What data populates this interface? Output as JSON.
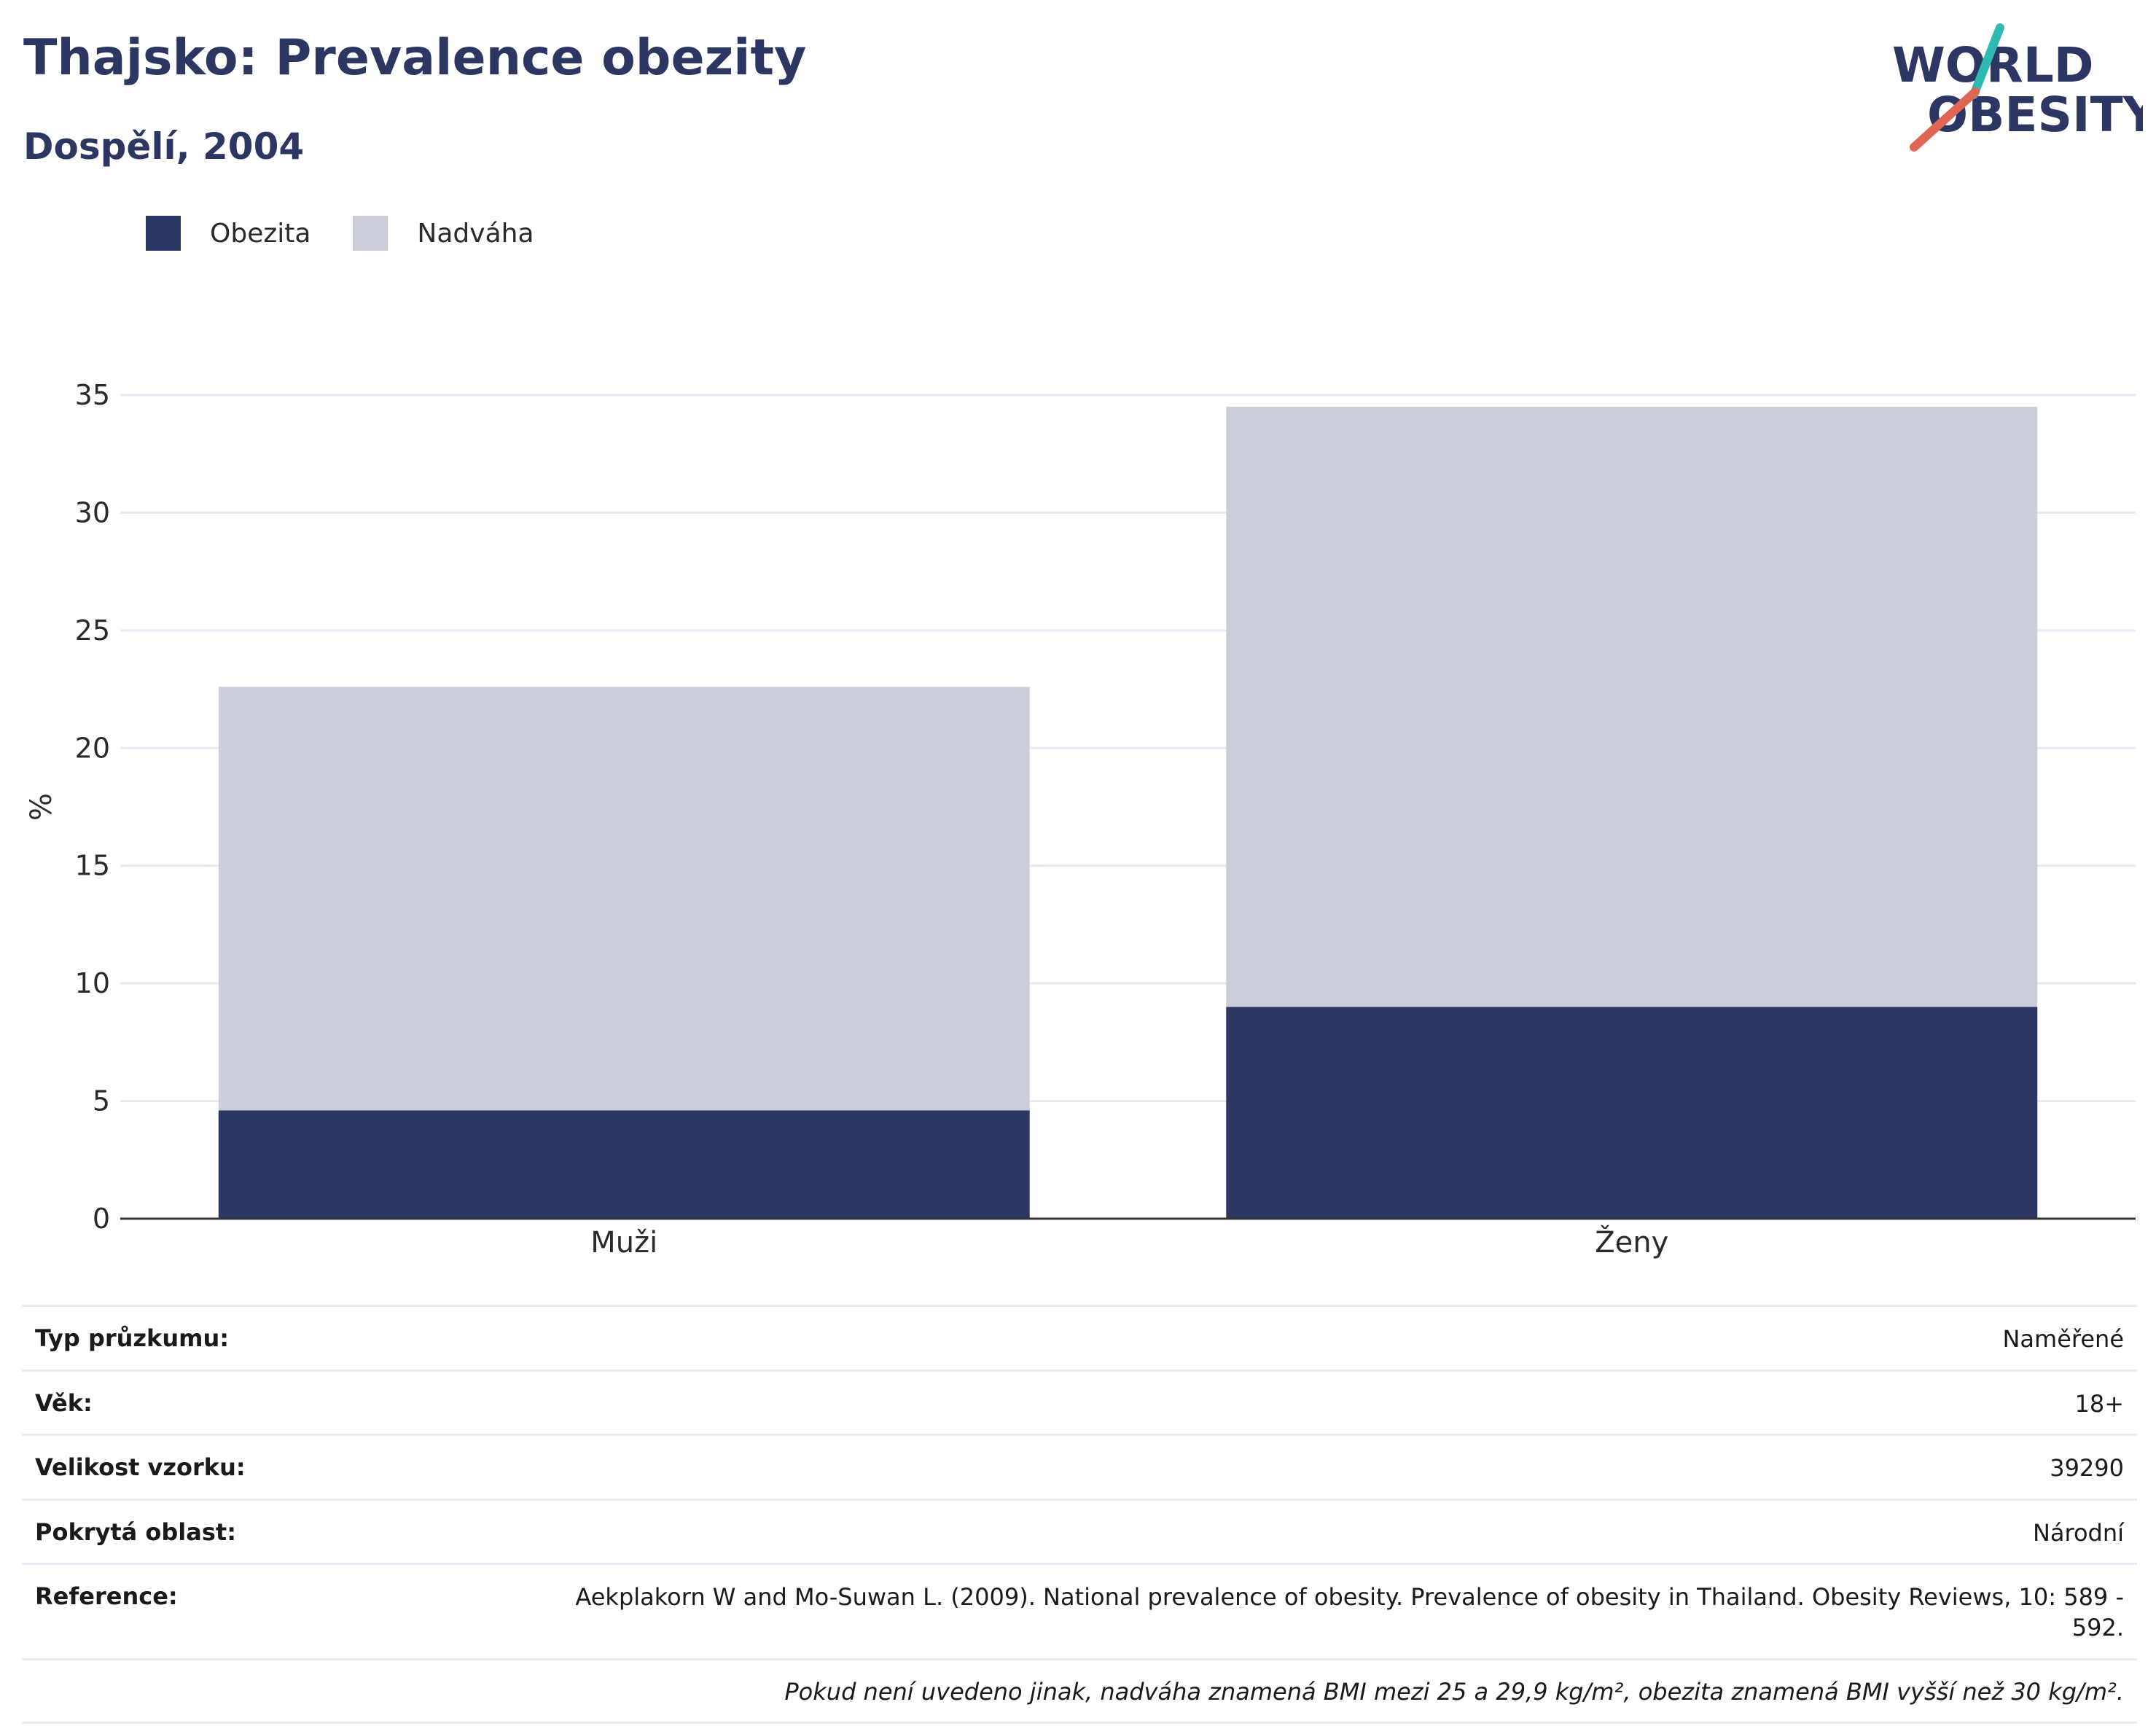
{
  "header": {
    "title": "Thajsko: Prevalence obezity",
    "subtitle": "Dospělí, 2004"
  },
  "logo": {
    "line1": "WORLD",
    "line2": "OBESITY"
  },
  "colors": {
    "obesity": "#2b3663",
    "overweight": "#cbcdd9",
    "title": "#2b3663",
    "logo_teal": "#2fb9b1",
    "logo_red": "#e06555"
  },
  "chart_data": {
    "type": "bar",
    "stacked": true,
    "categories": [
      "Muži",
      "Ženy"
    ],
    "series": [
      {
        "name": "Obezita",
        "values": [
          4.6,
          9.0
        ]
      },
      {
        "name": "Nadváha",
        "values": [
          18.0,
          25.5
        ]
      }
    ],
    "ylabel": "%",
    "xlabel": "",
    "ylim": [
      0,
      35
    ],
    "yticks": [
      0,
      5,
      10,
      15,
      20,
      25,
      30,
      35
    ],
    "grid": true,
    "legend_position": "top-left"
  },
  "info": {
    "rows": [
      {
        "label": "Typ průzkumu:",
        "value": "Naměřené"
      },
      {
        "label": "Věk:",
        "value": "18+"
      },
      {
        "label": "Velikost vzorku:",
        "value": "39290"
      },
      {
        "label": "Pokrytá oblast:",
        "value": "Národní"
      },
      {
        "label": "Reference:",
        "value": "Aekplakorn W and Mo-Suwan L. (2009). National prevalence of obesity. Prevalence of obesity in Thailand. Obesity Reviews, 10: 589 - 592."
      }
    ],
    "note": "Pokud není uvedeno jinak, nadváha znamená BMI mezi 25 a 29,9 kg/m², obezita znamená BMI vyšší než 30 kg/m²."
  }
}
